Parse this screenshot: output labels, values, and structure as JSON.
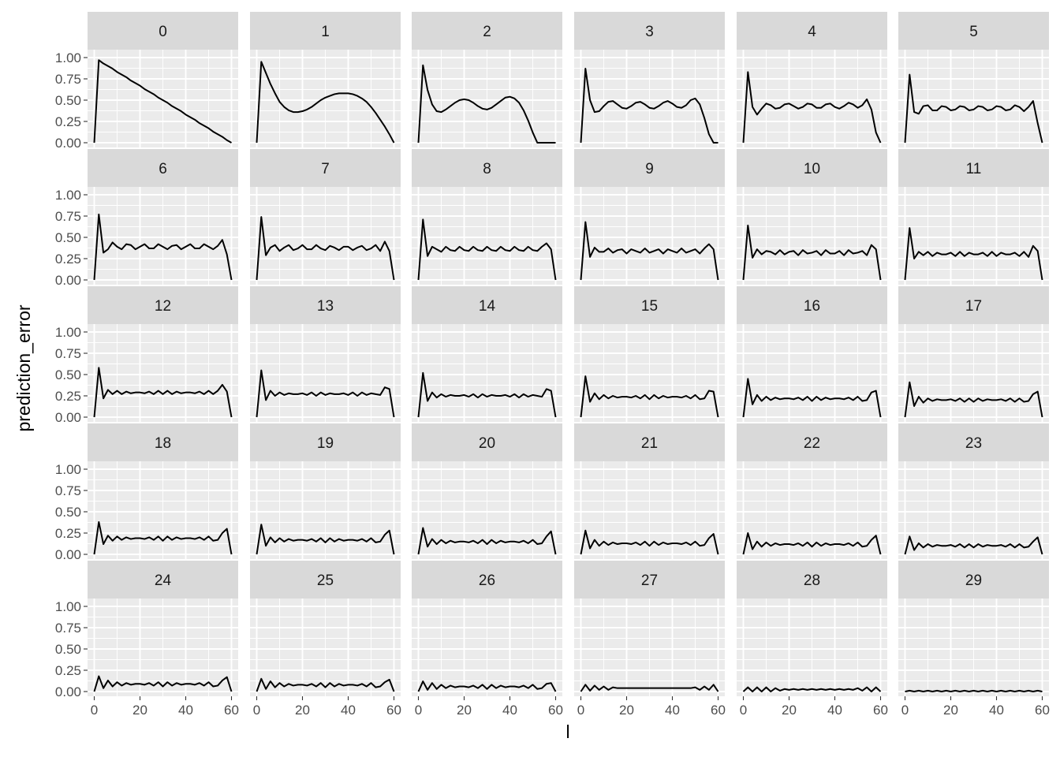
{
  "chart_data": {
    "type": "line",
    "layout": "facet_wrap",
    "ncol": 6,
    "xlabel": "l",
    "ylabel": "prediction_error",
    "xlim": [
      0,
      60
    ],
    "ylim": [
      0,
      1
    ],
    "x_ticks": [
      0,
      20,
      40,
      60
    ],
    "x_tick_labels": [
      "0",
      "20",
      "40",
      "60"
    ],
    "y_ticks": [
      0,
      0.25,
      0.5,
      0.75,
      1
    ],
    "y_tick_labels": [
      "0.00",
      "0.25",
      "0.50",
      "0.75",
      "1.00"
    ],
    "panel_background": "#ebebeb",
    "strip_background": "#d9d9d9",
    "grid_color": "#ffffff",
    "line_color": "#000000",
    "grid": true,
    "facet_labels": [
      "0",
      "1",
      "2",
      "3",
      "4",
      "5",
      "6",
      "7",
      "8",
      "9",
      "10",
      "11",
      "12",
      "13",
      "14",
      "15",
      "16",
      "17",
      "18",
      "19",
      "20",
      "21",
      "22",
      "23",
      "24",
      "25",
      "26",
      "27",
      "28",
      "29"
    ],
    "x": [
      0,
      2,
      4,
      6,
      8,
      10,
      12,
      14,
      16,
      18,
      20,
      22,
      24,
      26,
      28,
      30,
      32,
      34,
      36,
      38,
      40,
      42,
      44,
      46,
      48,
      50,
      52,
      54,
      56,
      58,
      60
    ],
    "series": [
      {
        "facet": "0",
        "values": [
          0,
          0.97,
          0.93,
          0.9,
          0.87,
          0.83,
          0.8,
          0.77,
          0.73,
          0.7,
          0.67,
          0.63,
          0.6,
          0.57,
          0.53,
          0.5,
          0.47,
          0.43,
          0.4,
          0.37,
          0.33,
          0.3,
          0.27,
          0.23,
          0.2,
          0.17,
          0.13,
          0.1,
          0.07,
          0.03,
          0
        ]
      },
      {
        "facet": "1",
        "values": [
          0,
          0.95,
          0.82,
          0.69,
          0.58,
          0.48,
          0.42,
          0.38,
          0.36,
          0.36,
          0.37,
          0.39,
          0.42,
          0.46,
          0.5,
          0.53,
          0.55,
          0.57,
          0.58,
          0.58,
          0.58,
          0.57,
          0.55,
          0.52,
          0.48,
          0.42,
          0.35,
          0.27,
          0.19,
          0.1,
          0
        ]
      },
      {
        "facet": "2",
        "values": [
          0,
          0.91,
          0.62,
          0.45,
          0.37,
          0.36,
          0.39,
          0.43,
          0.47,
          0.5,
          0.51,
          0.5,
          0.47,
          0.43,
          0.4,
          0.39,
          0.41,
          0.45,
          0.49,
          0.53,
          0.54,
          0.52,
          0.47,
          0.38,
          0.26,
          0.12,
          0,
          0,
          0,
          0,
          0
        ]
      },
      {
        "facet": "3",
        "values": [
          0,
          0.87,
          0.5,
          0.36,
          0.37,
          0.43,
          0.48,
          0.49,
          0.45,
          0.41,
          0.4,
          0.43,
          0.47,
          0.48,
          0.45,
          0.41,
          0.4,
          0.43,
          0.47,
          0.49,
          0.46,
          0.42,
          0.41,
          0.44,
          0.5,
          0.52,
          0.45,
          0.29,
          0.1,
          0,
          0
        ]
      },
      {
        "facet": "4",
        "values": [
          0,
          0.83,
          0.42,
          0.33,
          0.4,
          0.46,
          0.44,
          0.4,
          0.41,
          0.45,
          0.46,
          0.43,
          0.4,
          0.42,
          0.46,
          0.45,
          0.41,
          0.41,
          0.45,
          0.46,
          0.42,
          0.4,
          0.43,
          0.47,
          0.45,
          0.41,
          0.44,
          0.51,
          0.39,
          0.12,
          0
        ]
      },
      {
        "facet": "5",
        "values": [
          0,
          0.8,
          0.36,
          0.34,
          0.43,
          0.44,
          0.38,
          0.38,
          0.43,
          0.42,
          0.38,
          0.39,
          0.43,
          0.42,
          0.38,
          0.39,
          0.43,
          0.42,
          0.38,
          0.39,
          0.43,
          0.42,
          0.38,
          0.39,
          0.44,
          0.42,
          0.37,
          0.42,
          0.49,
          0.23,
          0
        ]
      },
      {
        "facet": "6",
        "values": [
          0,
          0.77,
          0.32,
          0.36,
          0.44,
          0.39,
          0.36,
          0.42,
          0.41,
          0.36,
          0.39,
          0.42,
          0.37,
          0.37,
          0.42,
          0.39,
          0.36,
          0.4,
          0.41,
          0.36,
          0.39,
          0.42,
          0.37,
          0.37,
          0.42,
          0.39,
          0.36,
          0.4,
          0.47,
          0.3,
          0
        ]
      },
      {
        "facet": "7",
        "values": [
          0,
          0.74,
          0.29,
          0.38,
          0.41,
          0.34,
          0.38,
          0.41,
          0.35,
          0.37,
          0.41,
          0.36,
          0.36,
          0.41,
          0.37,
          0.35,
          0.4,
          0.38,
          0.35,
          0.39,
          0.39,
          0.35,
          0.38,
          0.4,
          0.35,
          0.37,
          0.41,
          0.34,
          0.45,
          0.34,
          0
        ]
      },
      {
        "facet": "8",
        "values": [
          0,
          0.71,
          0.28,
          0.39,
          0.36,
          0.33,
          0.39,
          0.35,
          0.34,
          0.39,
          0.35,
          0.34,
          0.39,
          0.35,
          0.34,
          0.39,
          0.35,
          0.34,
          0.39,
          0.35,
          0.34,
          0.39,
          0.35,
          0.34,
          0.39,
          0.35,
          0.34,
          0.39,
          0.43,
          0.36,
          0
        ]
      },
      {
        "facet": "9",
        "values": [
          0,
          0.68,
          0.27,
          0.38,
          0.33,
          0.33,
          0.37,
          0.32,
          0.35,
          0.36,
          0.31,
          0.36,
          0.34,
          0.32,
          0.37,
          0.32,
          0.34,
          0.36,
          0.31,
          0.36,
          0.34,
          0.32,
          0.37,
          0.32,
          0.34,
          0.36,
          0.31,
          0.37,
          0.42,
          0.36,
          0
        ]
      },
      {
        "facet": "10",
        "values": [
          0,
          0.64,
          0.26,
          0.36,
          0.3,
          0.34,
          0.33,
          0.3,
          0.35,
          0.3,
          0.33,
          0.34,
          0.29,
          0.35,
          0.31,
          0.32,
          0.34,
          0.29,
          0.35,
          0.31,
          0.31,
          0.34,
          0.29,
          0.35,
          0.31,
          0.32,
          0.34,
          0.29,
          0.41,
          0.36,
          0
        ]
      },
      {
        "facet": "11",
        "values": [
          0,
          0.61,
          0.25,
          0.33,
          0.29,
          0.33,
          0.28,
          0.32,
          0.3,
          0.3,
          0.32,
          0.28,
          0.33,
          0.28,
          0.32,
          0.3,
          0.3,
          0.32,
          0.28,
          0.33,
          0.28,
          0.32,
          0.3,
          0.3,
          0.32,
          0.28,
          0.33,
          0.27,
          0.4,
          0.34,
          0
        ]
      },
      {
        "facet": "12",
        "values": [
          0,
          0.58,
          0.22,
          0.32,
          0.27,
          0.31,
          0.27,
          0.3,
          0.28,
          0.29,
          0.29,
          0.28,
          0.3,
          0.27,
          0.31,
          0.27,
          0.31,
          0.27,
          0.3,
          0.28,
          0.29,
          0.29,
          0.28,
          0.3,
          0.27,
          0.31,
          0.27,
          0.31,
          0.38,
          0.3,
          0
        ]
      },
      {
        "facet": "13",
        "values": [
          0,
          0.55,
          0.2,
          0.31,
          0.25,
          0.29,
          0.26,
          0.28,
          0.27,
          0.27,
          0.28,
          0.26,
          0.29,
          0.25,
          0.29,
          0.26,
          0.28,
          0.27,
          0.27,
          0.28,
          0.26,
          0.29,
          0.25,
          0.29,
          0.26,
          0.28,
          0.27,
          0.26,
          0.35,
          0.33,
          0
        ]
      },
      {
        "facet": "14",
        "values": [
          0,
          0.52,
          0.19,
          0.29,
          0.23,
          0.27,
          0.24,
          0.26,
          0.25,
          0.25,
          0.26,
          0.24,
          0.27,
          0.23,
          0.27,
          0.24,
          0.26,
          0.25,
          0.25,
          0.26,
          0.24,
          0.27,
          0.23,
          0.27,
          0.24,
          0.26,
          0.25,
          0.24,
          0.33,
          0.31,
          0
        ]
      },
      {
        "facet": "15",
        "values": [
          0,
          0.48,
          0.18,
          0.28,
          0.21,
          0.26,
          0.22,
          0.25,
          0.23,
          0.24,
          0.24,
          0.23,
          0.25,
          0.22,
          0.26,
          0.21,
          0.26,
          0.22,
          0.25,
          0.23,
          0.24,
          0.24,
          0.23,
          0.25,
          0.22,
          0.26,
          0.21,
          0.22,
          0.31,
          0.3,
          0
        ]
      },
      {
        "facet": "16",
        "values": [
          0,
          0.45,
          0.15,
          0.26,
          0.19,
          0.24,
          0.2,
          0.23,
          0.21,
          0.22,
          0.22,
          0.21,
          0.23,
          0.2,
          0.24,
          0.19,
          0.24,
          0.2,
          0.23,
          0.21,
          0.22,
          0.22,
          0.21,
          0.23,
          0.2,
          0.24,
          0.19,
          0.2,
          0.29,
          0.31,
          0
        ]
      },
      {
        "facet": "17",
        "values": [
          0,
          0.41,
          0.13,
          0.24,
          0.17,
          0.22,
          0.19,
          0.21,
          0.2,
          0.2,
          0.21,
          0.19,
          0.22,
          0.18,
          0.22,
          0.18,
          0.22,
          0.19,
          0.21,
          0.2,
          0.2,
          0.21,
          0.19,
          0.22,
          0.18,
          0.22,
          0.18,
          0.19,
          0.27,
          0.3,
          0
        ]
      },
      {
        "facet": "18",
        "values": [
          0,
          0.38,
          0.12,
          0.22,
          0.16,
          0.21,
          0.17,
          0.2,
          0.18,
          0.19,
          0.19,
          0.18,
          0.2,
          0.17,
          0.21,
          0.16,
          0.21,
          0.17,
          0.2,
          0.18,
          0.19,
          0.19,
          0.18,
          0.2,
          0.17,
          0.21,
          0.16,
          0.17,
          0.25,
          0.3,
          0
        ]
      },
      {
        "facet": "19",
        "values": [
          0,
          0.35,
          0.1,
          0.2,
          0.14,
          0.19,
          0.15,
          0.18,
          0.16,
          0.17,
          0.17,
          0.16,
          0.18,
          0.15,
          0.19,
          0.14,
          0.19,
          0.15,
          0.18,
          0.16,
          0.17,
          0.17,
          0.16,
          0.18,
          0.15,
          0.19,
          0.14,
          0.15,
          0.23,
          0.28,
          0
        ]
      },
      {
        "facet": "20",
        "values": [
          0,
          0.31,
          0.09,
          0.18,
          0.12,
          0.17,
          0.13,
          0.16,
          0.14,
          0.15,
          0.15,
          0.14,
          0.16,
          0.13,
          0.17,
          0.12,
          0.17,
          0.13,
          0.16,
          0.14,
          0.15,
          0.15,
          0.14,
          0.16,
          0.13,
          0.17,
          0.12,
          0.13,
          0.21,
          0.27,
          0
        ]
      },
      {
        "facet": "21",
        "values": [
          0,
          0.28,
          0.07,
          0.17,
          0.1,
          0.15,
          0.11,
          0.14,
          0.12,
          0.13,
          0.13,
          0.12,
          0.14,
          0.11,
          0.15,
          0.1,
          0.15,
          0.11,
          0.14,
          0.12,
          0.13,
          0.13,
          0.12,
          0.14,
          0.11,
          0.15,
          0.1,
          0.11,
          0.19,
          0.24,
          0
        ]
      },
      {
        "facet": "22",
        "values": [
          0,
          0.25,
          0.06,
          0.15,
          0.09,
          0.14,
          0.1,
          0.13,
          0.11,
          0.12,
          0.12,
          0.11,
          0.13,
          0.1,
          0.14,
          0.09,
          0.14,
          0.1,
          0.13,
          0.11,
          0.12,
          0.12,
          0.11,
          0.13,
          0.1,
          0.14,
          0.09,
          0.1,
          0.17,
          0.22,
          0
        ]
      },
      {
        "facet": "23",
        "values": [
          0,
          0.21,
          0.05,
          0.13,
          0.08,
          0.12,
          0.09,
          0.11,
          0.1,
          0.1,
          0.11,
          0.09,
          0.12,
          0.08,
          0.12,
          0.08,
          0.12,
          0.09,
          0.11,
          0.1,
          0.1,
          0.11,
          0.09,
          0.12,
          0.08,
          0.12,
          0.08,
          0.09,
          0.15,
          0.2,
          0
        ]
      },
      {
        "facet": "24",
        "values": [
          0,
          0.18,
          0.04,
          0.13,
          0.06,
          0.11,
          0.07,
          0.1,
          0.08,
          0.09,
          0.09,
          0.08,
          0.1,
          0.07,
          0.11,
          0.06,
          0.11,
          0.07,
          0.1,
          0.08,
          0.09,
          0.09,
          0.08,
          0.1,
          0.07,
          0.11,
          0.06,
          0.07,
          0.13,
          0.17,
          0
        ]
      },
      {
        "facet": "25",
        "values": [
          0,
          0.15,
          0.03,
          0.12,
          0.05,
          0.1,
          0.06,
          0.09,
          0.07,
          0.08,
          0.08,
          0.07,
          0.09,
          0.06,
          0.1,
          0.05,
          0.1,
          0.06,
          0.09,
          0.07,
          0.08,
          0.08,
          0.07,
          0.09,
          0.06,
          0.1,
          0.05,
          0.06,
          0.11,
          0.14,
          0
        ]
      },
      {
        "facet": "26",
        "values": [
          0,
          0.12,
          0.02,
          0.1,
          0.03,
          0.08,
          0.04,
          0.07,
          0.05,
          0.06,
          0.06,
          0.05,
          0.07,
          0.04,
          0.08,
          0.03,
          0.08,
          0.04,
          0.07,
          0.05,
          0.06,
          0.06,
          0.05,
          0.07,
          0.04,
          0.08,
          0.03,
          0.04,
          0.09,
          0.1,
          0
        ]
      },
      {
        "facet": "27",
        "values": [
          0,
          0.08,
          0.01,
          0.07,
          0.02,
          0.06,
          0.02,
          0.05,
          0.04,
          0.04,
          0.04,
          0.04,
          0.04,
          0.04,
          0.04,
          0.04,
          0.04,
          0.04,
          0.04,
          0.04,
          0.04,
          0.04,
          0.04,
          0.04,
          0.04,
          0.05,
          0.02,
          0.06,
          0.02,
          0.08,
          0
        ]
      },
      {
        "facet": "28",
        "values": [
          0,
          0.05,
          0,
          0.05,
          0,
          0.05,
          0,
          0.04,
          0.01,
          0.03,
          0.02,
          0.03,
          0.02,
          0.03,
          0.02,
          0.03,
          0.02,
          0.03,
          0.02,
          0.03,
          0.02,
          0.03,
          0.02,
          0.03,
          0.02,
          0.04,
          0.01,
          0.05,
          0,
          0.05,
          0
        ]
      },
      {
        "facet": "29",
        "values": [
          0,
          0.01,
          0,
          0.01,
          0,
          0.01,
          0,
          0.01,
          0,
          0.01,
          0,
          0.01,
          0,
          0.01,
          0,
          0.01,
          0,
          0.01,
          0,
          0.01,
          0,
          0.01,
          0,
          0.01,
          0,
          0.01,
          0,
          0.01,
          0,
          0.01,
          0
        ]
      }
    ]
  }
}
